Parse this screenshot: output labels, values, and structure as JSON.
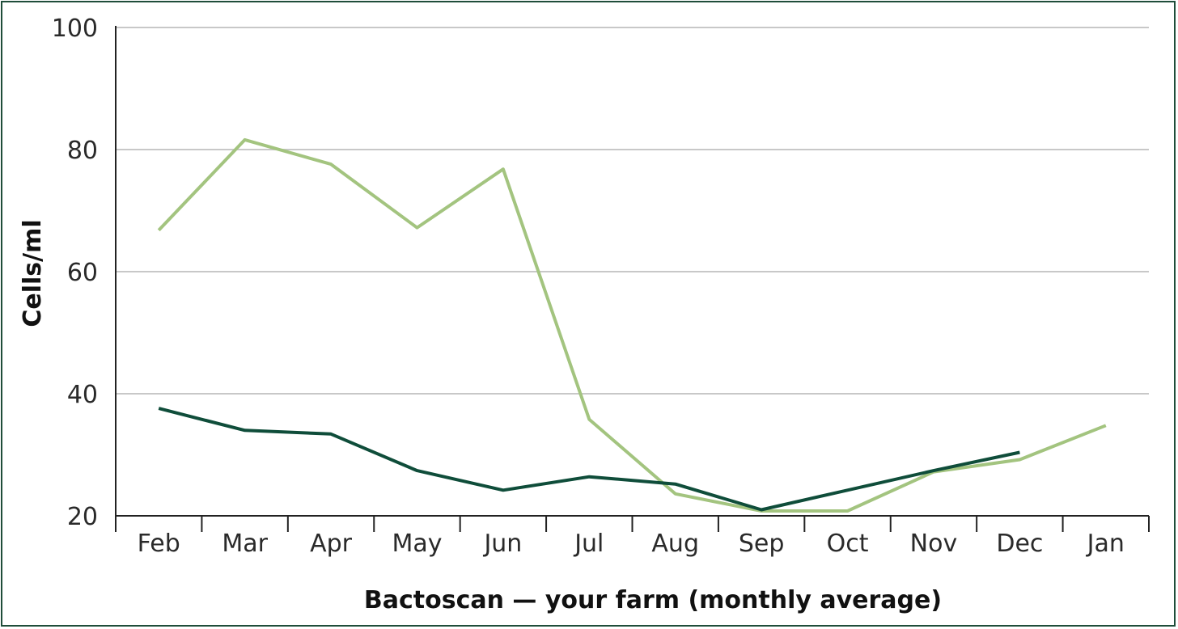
{
  "chart_data": {
    "type": "line",
    "title": "",
    "xlabel": "Bactoscan — your farm (monthly average)",
    "ylabel": "Cells/ml",
    "categories": [
      "Feb",
      "Mar",
      "Apr",
      "May",
      "Jun",
      "Jul",
      "Aug",
      "Sep",
      "Oct",
      "Nov",
      "Dec",
      "Jan"
    ],
    "ylim": [
      20,
      100
    ],
    "yticks": [
      20,
      40,
      60,
      80,
      100
    ],
    "grid": true,
    "legend": "none",
    "series": [
      {
        "color": "#a3c47f",
        "values": [
          66.8,
          81.6,
          77.6,
          67.2,
          76.8,
          35.8,
          23.6,
          20.8,
          20.8,
          27.2,
          29.2,
          34.8
        ]
      },
      {
        "color": "#0f4d3a",
        "values": [
          37.6,
          34.0,
          33.4,
          27.4,
          24.2,
          26.4,
          25.2,
          21.0,
          24.2,
          27.4,
          30.4,
          null
        ]
      }
    ]
  }
}
